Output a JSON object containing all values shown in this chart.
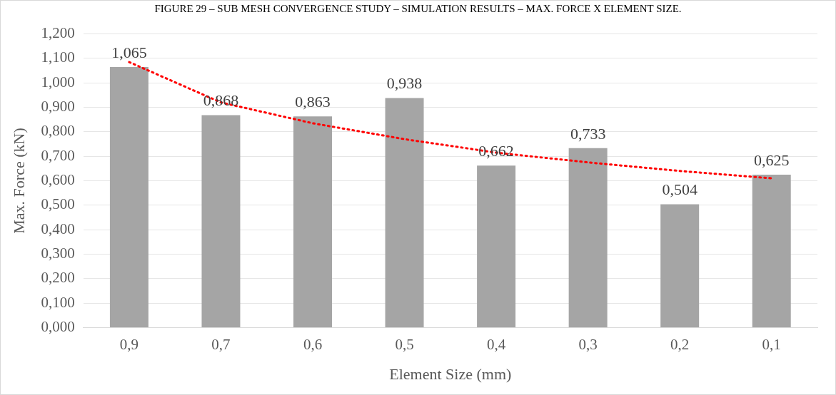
{
  "chart_data": {
    "type": "bar",
    "title": "FIGURE 29 – SUB MESH CONVERGENCE STUDY – SIMULATION RESULTS – MAX. FORCE X ELEMENT SIZE.",
    "xlabel": "Element Size (mm)",
    "ylabel": "Max. Force (kN)",
    "categories": [
      "0,9",
      "0,7",
      "0,6",
      "0,5",
      "0,4",
      "0,3",
      "0,2",
      "0,1"
    ],
    "series": [
      {
        "color": "#a5a5a5",
        "values": [
          1.065,
          0.868,
          0.863,
          0.938,
          0.662,
          0.733,
          0.504,
          0.625
        ],
        "value_labels": [
          "1,065",
          "0,868",
          "0,863",
          "0,938",
          "0,662",
          "0,733",
          "0,504",
          "0,625"
        ]
      },
      {
        "type": "line",
        "color": "#ff0000",
        "line_style": "dotted",
        "marker": "none",
        "values": [
          1.085,
          0.92,
          0.835,
          0.77,
          0.715,
          0.675,
          0.64,
          0.61
        ]
      }
    ],
    "ylim": [
      0,
      1.2
    ],
    "yticks": [
      {
        "value": 0,
        "label": "0,000"
      },
      {
        "value": 0.1,
        "label": "0,100"
      },
      {
        "value": 0.2,
        "label": "0,200"
      },
      {
        "value": 0.3,
        "label": "0,300"
      },
      {
        "value": 0.4,
        "label": "0,400"
      },
      {
        "value": 0.5,
        "label": "0,500"
      },
      {
        "value": 0.6,
        "label": "0,600"
      },
      {
        "value": 0.7,
        "label": "0,700"
      },
      {
        "value": 0.8,
        "label": "0,800"
      },
      {
        "value": 0.9,
        "label": "0,900"
      },
      {
        "value": 1,
        "label": "1,000"
      },
      {
        "value": 1.1,
        "label": "1,100"
      },
      {
        "value": 1.2,
        "label": "1,200"
      }
    ],
    "grid": "y",
    "legend": false
  }
}
